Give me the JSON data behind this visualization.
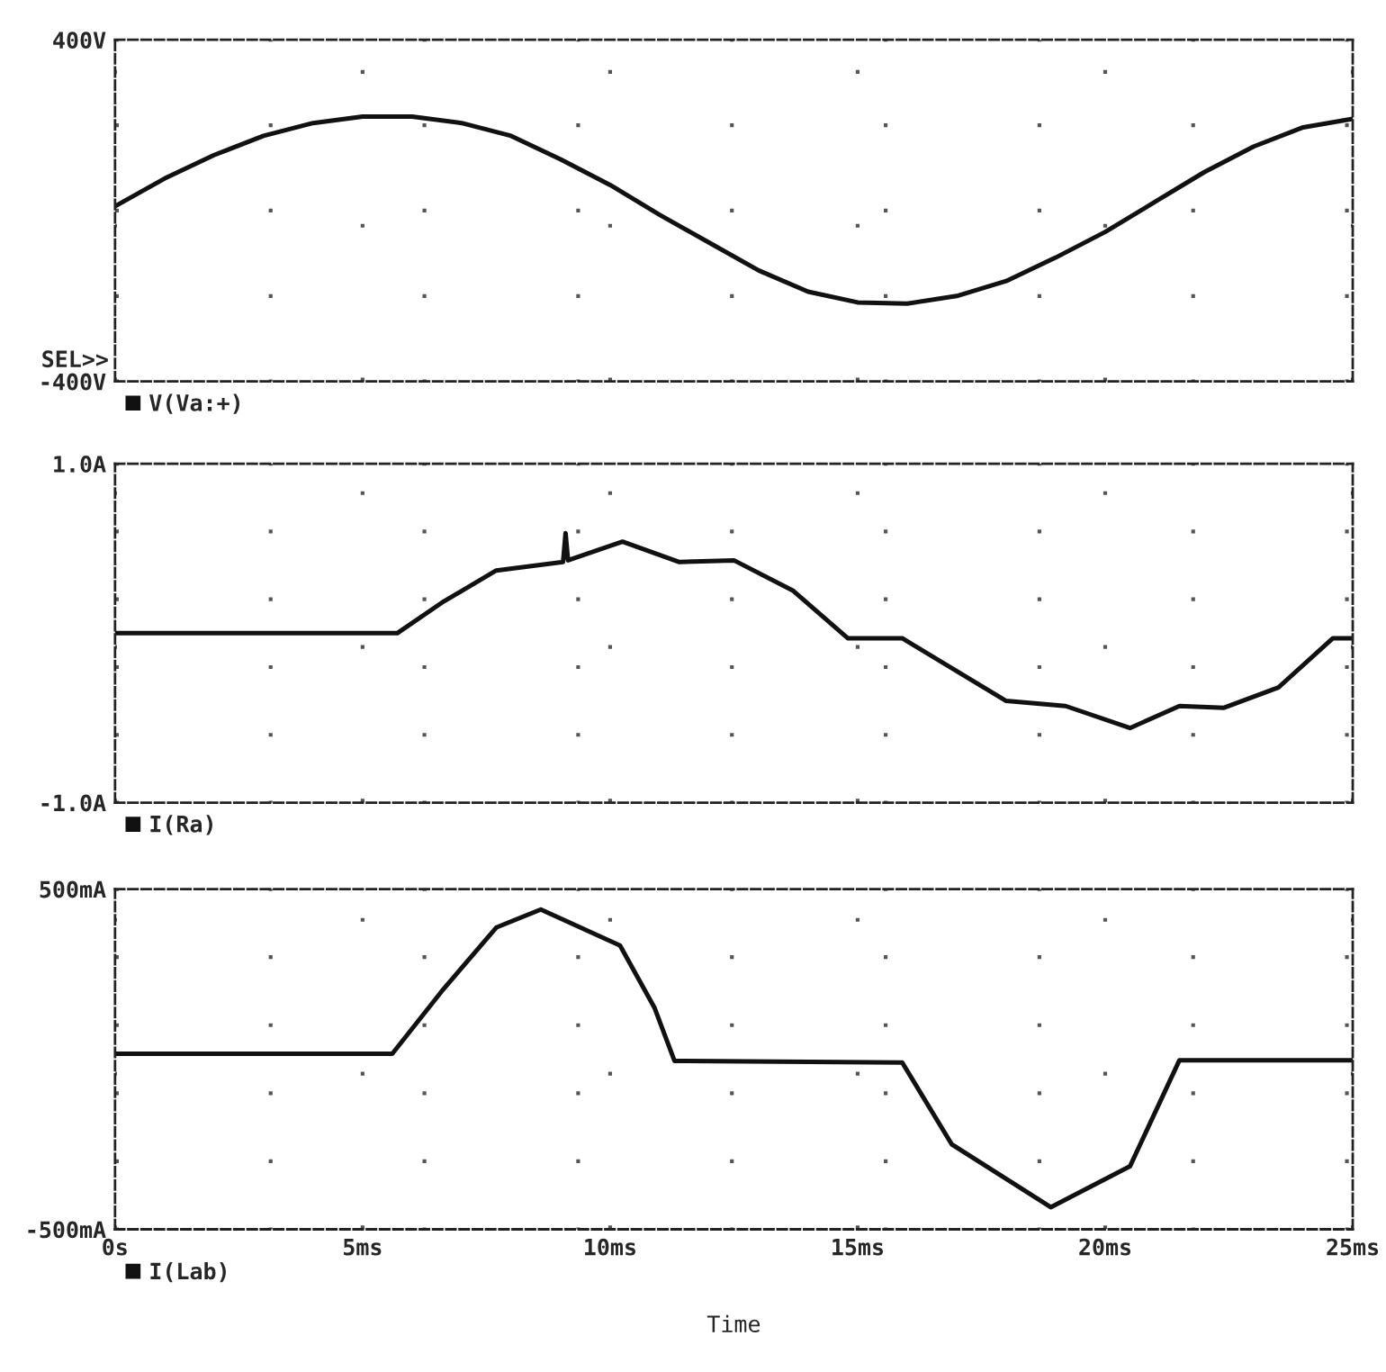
{
  "chart_data": [
    {
      "type": "line",
      "xlim": [
        0,
        25
      ],
      "ylim": [
        -400,
        400
      ],
      "yticks": [
        {
          "value": -400,
          "label": "-400V"
        },
        {
          "value": -200,
          "label": null
        },
        {
          "value": 0,
          "label": null
        },
        {
          "value": 200,
          "label": null
        },
        {
          "value": 400,
          "label": "400V"
        }
      ],
      "xticks": [
        {
          "value": 0,
          "label": null
        },
        {
          "value": 5,
          "label": null
        },
        {
          "value": 10,
          "label": null
        },
        {
          "value": 15,
          "label": null
        },
        {
          "value": 20,
          "label": null
        },
        {
          "value": 25,
          "label": null
        }
      ],
      "tick_labels": "y",
      "grid": true,
      "legend": "bottom left",
      "annotations": [
        "SEL>>"
      ],
      "series": [
        {
          "name": "V(Va:+)",
          "color": "#111111",
          "x": [
            0,
            1,
            2,
            3,
            4,
            5,
            6,
            7,
            8,
            9,
            10,
            11,
            12,
            13,
            14,
            15,
            16,
            17,
            18,
            19,
            20,
            21,
            22,
            23,
            24,
            25
          ],
          "values": [
            10,
            75,
            130,
            175,
            205,
            220,
            220,
            205,
            175,
            120,
            60,
            -10,
            -75,
            -140,
            -190,
            -215,
            -218,
            -200,
            -165,
            -110,
            -50,
            20,
            90,
            150,
            195,
            215
          ]
        }
      ]
    },
    {
      "type": "line",
      "xlim": [
        0,
        25
      ],
      "ylim": [
        -1.0,
        1.0
      ],
      "yticks": [
        {
          "value": -1.0,
          "label": "-1.0A"
        },
        {
          "value": -0.6,
          "label": null
        },
        {
          "value": -0.2,
          "label": null
        },
        {
          "value": 0.2,
          "label": null
        },
        {
          "value": 0.6,
          "label": null
        },
        {
          "value": 1.0,
          "label": "1.0A"
        }
      ],
      "xticks": [
        {
          "value": 0,
          "label": null
        },
        {
          "value": 5,
          "label": null
        },
        {
          "value": 10,
          "label": null
        },
        {
          "value": 15,
          "label": null
        },
        {
          "value": 20,
          "label": null
        },
        {
          "value": 25,
          "label": null
        }
      ],
      "tick_labels": "y",
      "grid": true,
      "legend": "bottom left",
      "series": [
        {
          "name": "I(Ra)",
          "color": "#111111",
          "x": [
            0,
            5.7,
            6.6,
            7.7,
            9.05,
            9.1,
            9.15,
            10.25,
            11.4,
            12.5,
            13.7,
            14.8,
            15.9,
            18.0,
            19.2,
            20.5,
            21.5,
            22.4,
            23.5,
            24.6,
            25
          ],
          "values": [
            0.0,
            0.0,
            0.18,
            0.37,
            0.42,
            0.59,
            0.43,
            0.54,
            0.42,
            0.43,
            0.25,
            -0.03,
            -0.03,
            -0.4,
            -0.43,
            -0.56,
            -0.43,
            -0.44,
            -0.32,
            -0.03,
            -0.03
          ]
        }
      ]
    },
    {
      "type": "line",
      "xlabel": "Time",
      "xlim": [
        0,
        25
      ],
      "ylim": [
        -500,
        500
      ],
      "yticks": [
        {
          "value": -500,
          "label": "-500mA"
        },
        {
          "value": -300,
          "label": null
        },
        {
          "value": -100,
          "label": null
        },
        {
          "value": 100,
          "label": null
        },
        {
          "value": 300,
          "label": null
        },
        {
          "value": 500,
          "label": "500mA"
        }
      ],
      "xticks": [
        {
          "value": 0,
          "label": "0s"
        },
        {
          "value": 5,
          "label": "5ms"
        },
        {
          "value": 10,
          "label": "10ms"
        },
        {
          "value": 15,
          "label": "15ms"
        },
        {
          "value": 20,
          "label": "20ms"
        },
        {
          "value": 25,
          "label": "25ms"
        }
      ],
      "grid": true,
      "legend": "bottom left",
      "series": [
        {
          "name": "I(Lab)",
          "color": "#111111",
          "x": [
            0,
            5.6,
            6.6,
            7.7,
            8.6,
            10.2,
            10.9,
            11.3,
            15.9,
            16.9,
            18.9,
            20.5,
            21.5,
            25
          ],
          "values": [
            16,
            16,
            200,
            387,
            440,
            334,
            150,
            -5,
            -10,
            -250,
            -435,
            -315,
            -3,
            -3
          ]
        }
      ]
    }
  ]
}
